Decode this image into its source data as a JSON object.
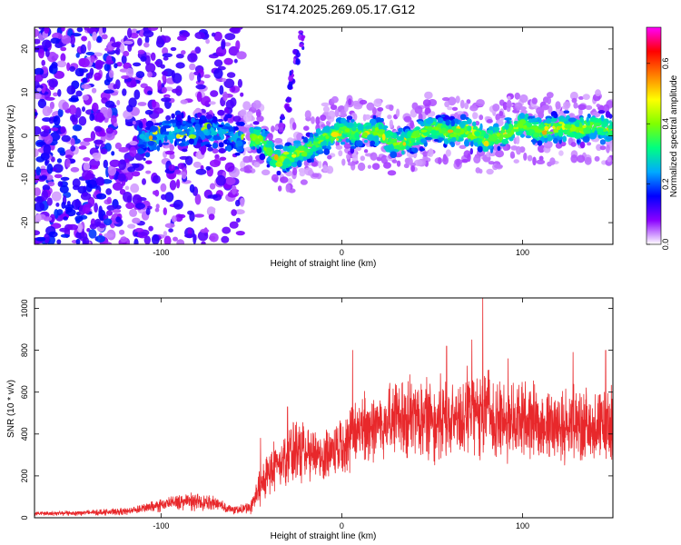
{
  "title": "S174.2025.269.05.17.G12",
  "chart_data": [
    {
      "type": "heatmap",
      "title": "S174.2025.269.05.17.G12",
      "xlabel": "Height of straight line (km)",
      "ylabel": "Frequency (Hz)",
      "xlim": [
        -170,
        150
      ],
      "ylim": [
        -25,
        25
      ],
      "x_ticks": [
        -100,
        0,
        100
      ],
      "y_ticks": [
        -20,
        -10,
        0,
        10,
        20
      ],
      "x_tick_labels": [
        "-100",
        "0",
        "100"
      ],
      "y_tick_labels": [
        "-20",
        "-10",
        "0",
        "10",
        "20"
      ],
      "colorbar": {
        "label": "Normalized spectral amplitude",
        "range": [
          0.0,
          0.72
        ],
        "ticks": [
          "0.0",
          "0.2",
          "0.4",
          "0.6"
        ],
        "tick_values": [
          0.0,
          0.2,
          0.4,
          0.6
        ],
        "colormap": [
          "#ffffff",
          "#8a00ff",
          "#0000ff",
          "#00aaff",
          "#00ff80",
          "#80ff00",
          "#ffff00",
          "#ff8000",
          "#ff0000",
          "#ff00ff"
        ]
      },
      "ridge": {
        "name": "dominant frequency trace",
        "x": [
          -110,
          -90,
          -70,
          -55,
          -45,
          -37,
          -30,
          -20,
          -10,
          0,
          10,
          20,
          30,
          40,
          50,
          60,
          70,
          80,
          90,
          100,
          110,
          120,
          130,
          140,
          150
        ],
        "y": [
          -1,
          1,
          1,
          -1,
          -0.5,
          -5.5,
          -5,
          -3.5,
          -0.5,
          1,
          0.5,
          1,
          -2,
          -0.5,
          2,
          0.5,
          1,
          -1,
          0.5,
          2.5,
          1,
          2,
          1.5,
          2.5,
          1
        ]
      },
      "artifact": {
        "x": [
          -33,
          -30,
          -28,
          -25,
          -22
        ],
        "y": [
          3,
          8,
          13,
          18,
          22
        ]
      }
    },
    {
      "type": "line",
      "xlabel": "Height of straight line (km)",
      "ylabel": "SNR (10 * v/v)",
      "xlim": [
        -170,
        150
      ],
      "ylim": [
        0,
        1050
      ],
      "x_ticks": [
        -100,
        0,
        100
      ],
      "y_ticks": [
        0,
        200,
        400,
        600,
        800,
        1000
      ],
      "x_tick_labels": [
        "-100",
        "0",
        "100"
      ],
      "y_tick_labels": [
        "0",
        "200",
        "400",
        "600",
        "800",
        "1000"
      ],
      "color": "#e8282b",
      "series": [
        {
          "name": "SNR",
          "x": [
            -170,
            -150,
            -120,
            -100,
            -90,
            -80,
            -70,
            -60,
            -55,
            -50,
            -45,
            -40,
            -35,
            -30,
            -25,
            -20,
            -15,
            -10,
            -5,
            0,
            5,
            10,
            20,
            30,
            40,
            50,
            60,
            70,
            80,
            90,
            100,
            110,
            120,
            130,
            140,
            150
          ],
          "mean": [
            20,
            22,
            30,
            60,
            80,
            75,
            70,
            35,
            40,
            55,
            150,
            230,
            270,
            300,
            320,
            290,
            300,
            300,
            320,
            360,
            380,
            430,
            450,
            470,
            480,
            480,
            460,
            500,
            510,
            460,
            480,
            460,
            430,
            450,
            430,
            440
          ],
          "spread": [
            8,
            10,
            15,
            25,
            35,
            35,
            30,
            15,
            20,
            30,
            80,
            110,
            120,
            130,
            140,
            120,
            120,
            110,
            120,
            130,
            140,
            150,
            160,
            170,
            180,
            180,
            170,
            180,
            190,
            170,
            170,
            160,
            150,
            160,
            150,
            160
          ],
          "peaks": [
            {
              "x": -45,
              "y": 380
            },
            {
              "x": -30,
              "y": 530
            },
            {
              "x": 6,
              "y": 800
            },
            {
              "x": 58,
              "y": 820
            },
            {
              "x": 72,
              "y": 850
            },
            {
              "x": 78,
              "y": 1050
            },
            {
              "x": 92,
              "y": 760
            },
            {
              "x": 128,
              "y": 790
            },
            {
              "x": 146,
              "y": 800
            }
          ]
        }
      ]
    }
  ]
}
